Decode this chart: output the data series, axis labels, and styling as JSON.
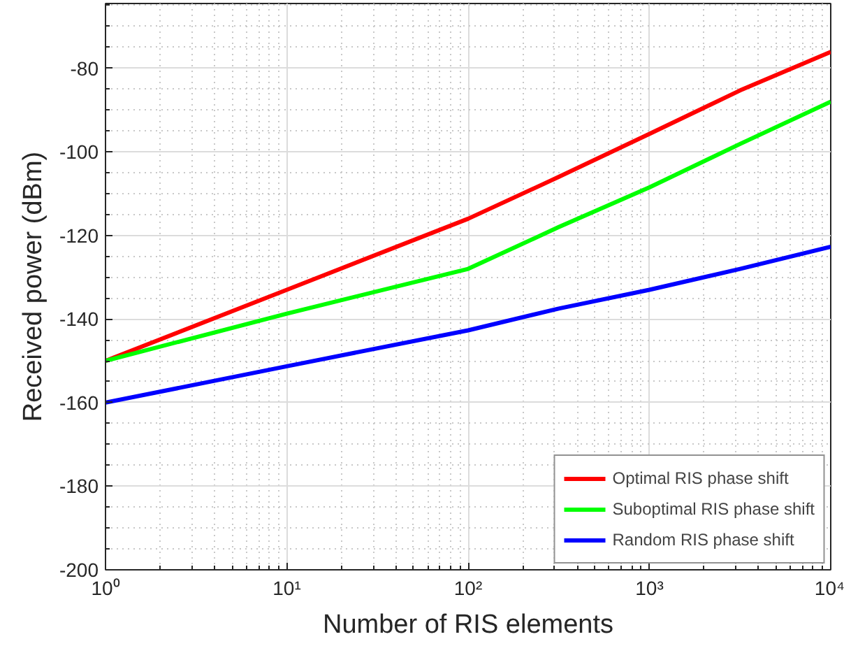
{
  "chart_data": {
    "type": "line",
    "xlabel": "Number of RIS elements",
    "ylabel": "Received power (dBm)",
    "log": "x",
    "xlim": [
      1,
      10000
    ],
    "ylim": [
      -200,
      -64.5
    ],
    "xticks": [
      {
        "value": 1,
        "label": "10⁰"
      },
      {
        "value": 10,
        "label": "10¹"
      },
      {
        "value": 100,
        "label": "10²"
      },
      {
        "value": 1000,
        "label": "10³"
      },
      {
        "value": 10000,
        "label": "10⁴"
      }
    ],
    "yticks": [
      -200,
      -180,
      -160,
      -140,
      -120,
      -100,
      -80
    ],
    "grid": true,
    "legend": "bottom right",
    "line_style": "solid",
    "marker": "none",
    "series": [
      {
        "name": "Optimal RIS phase shift",
        "color": "#ff0000",
        "x": [
          1,
          10,
          100,
          316,
          1000,
          3162,
          10000
        ],
        "values": [
          -150,
          -133,
          -116,
          -106,
          -95.7,
          -85.3,
          -76.1
        ]
      },
      {
        "name": "Suboptimal RIS phase shift",
        "color": "#00ff00",
        "x": [
          1,
          10,
          100,
          316,
          1000,
          3162,
          10000
        ],
        "values": [
          -150,
          -138.7,
          -128,
          -118,
          -108.5,
          -98.1,
          -88
        ]
      },
      {
        "name": "Random RIS phase shift",
        "color": "#0000ff",
        "x": [
          1,
          10,
          100,
          316,
          1000,
          3162,
          10000
        ],
        "values": [
          -160,
          -151.3,
          -142.7,
          -137.5,
          -133,
          -128,
          -122.7
        ]
      }
    ]
  }
}
